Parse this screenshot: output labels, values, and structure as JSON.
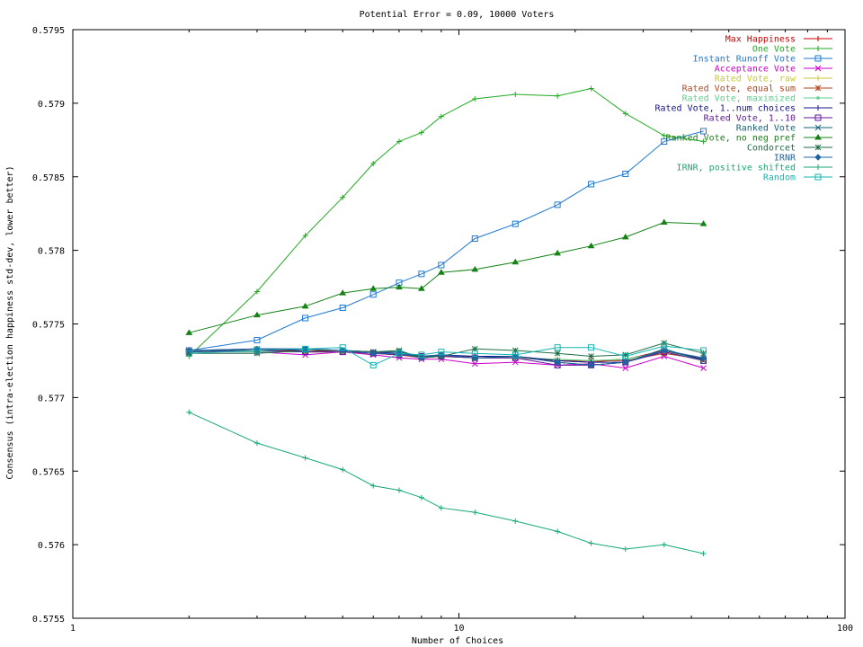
{
  "chart_data": {
    "type": "line",
    "title": "Potential Error = 0.09, 10000 Voters",
    "xlabel": "Number of Choices",
    "ylabel": "Consensus (intra-election happiness std-dev, lower better)",
    "x_scale": "log",
    "xlim": [
      1,
      100
    ],
    "ylim": [
      0.5755,
      0.5795
    ],
    "x_ticks": [
      "1",
      "10",
      "100"
    ],
    "y_ticks": [
      "0.5755",
      "0.576",
      "0.5765",
      "0.577",
      "0.5775",
      "0.578",
      "0.5785",
      "0.579",
      "0.5795"
    ],
    "legend_position": "top-right",
    "grid": false,
    "x": [
      2,
      3,
      4,
      5,
      6,
      7,
      8,
      9,
      11,
      14,
      18,
      22,
      27,
      34,
      43
    ],
    "series": [
      {
        "name": "Max Happiness",
        "color": "#cc0000",
        "marker": "plus-line",
        "values": [
          0.57731,
          0.57732,
          0.57732,
          0.57731,
          0.5773,
          0.5773,
          0.57728,
          0.57728,
          0.57728,
          0.57728,
          0.57725,
          0.57724,
          0.57726,
          0.57732,
          0.57726
        ]
      },
      {
        "name": "One Vote",
        "color": "#22aa22",
        "marker": "plus",
        "values": [
          0.57728,
          0.57772,
          0.5781,
          0.57836,
          0.57859,
          0.57874,
          0.5788,
          0.57891,
          0.57903,
          0.57906,
          0.57905,
          0.5791,
          0.57893,
          0.57878,
          0.57874
        ]
      },
      {
        "name": "Instant Runoff Vote",
        "color": "#1e78d2",
        "marker": "square",
        "values": [
          0.57732,
          0.57739,
          0.57754,
          0.57761,
          0.5777,
          0.57778,
          0.57784,
          0.5779,
          0.57808,
          0.57818,
          0.57831,
          0.57845,
          0.57852,
          0.57874,
          0.57881
        ]
      },
      {
        "name": "Acceptance Vote",
        "color": "#cc00cc",
        "marker": "x",
        "values": [
          0.57731,
          0.57731,
          0.57729,
          0.57731,
          0.57729,
          0.57727,
          0.57726,
          0.57726,
          0.57723,
          0.57724,
          0.57722,
          0.57723,
          0.5772,
          0.57728,
          0.5772
        ]
      },
      {
        "name": "Rated Vote, raw",
        "color": "#c8c832",
        "marker": "plus",
        "values": [
          0.57731,
          0.57732,
          0.57731,
          0.57731,
          0.5773,
          0.57729,
          0.57728,
          0.57728,
          0.57727,
          0.57727,
          0.57726,
          0.57725,
          0.57726,
          0.57731,
          0.57727
        ]
      },
      {
        "name": "Rated Vote, equal sum",
        "color": "#b4461e",
        "marker": "star",
        "values": [
          0.57731,
          0.57732,
          0.57731,
          0.57731,
          0.5773,
          0.57729,
          0.57727,
          0.57728,
          0.57727,
          0.57727,
          0.57725,
          0.57725,
          0.57725,
          0.5773,
          0.57726
        ]
      },
      {
        "name": "Rated Vote, maximized",
        "color": "#5ad28c",
        "marker": "dot",
        "values": [
          0.57731,
          0.57731,
          0.57731,
          0.57731,
          0.5773,
          0.57729,
          0.57728,
          0.57728,
          0.57727,
          0.57727,
          0.57726,
          0.57725,
          0.57726,
          0.57731,
          0.57726
        ]
      },
      {
        "name": "Rated Vote, 1..num choices",
        "color": "#14148c",
        "marker": "plus",
        "values": [
          0.57732,
          0.57733,
          0.57732,
          0.57732,
          0.57731,
          0.5773,
          0.57728,
          0.57729,
          0.57728,
          0.57728,
          0.57725,
          0.57724,
          0.57724,
          0.57732,
          0.57726
        ]
      },
      {
        "name": "Rated Vote, 1..10",
        "color": "#6414a0",
        "marker": "square",
        "values": [
          0.57731,
          0.57732,
          0.57731,
          0.57731,
          0.5773,
          0.57729,
          0.57728,
          0.57728,
          0.57727,
          0.57727,
          0.57722,
          0.57722,
          0.57724,
          0.57731,
          0.57725
        ]
      },
      {
        "name": "Ranked Vote",
        "color": "#14647a",
        "marker": "x",
        "values": [
          0.57731,
          0.57733,
          0.57733,
          0.57732,
          0.57731,
          0.57731,
          0.57728,
          0.57729,
          0.57727,
          0.57728,
          0.57724,
          0.57722,
          0.57724,
          0.57733,
          0.57725
        ]
      },
      {
        "name": "Ranked Vote, no neg pref",
        "color": "#148214",
        "marker": "triangle",
        "values": [
          0.57744,
          0.57756,
          0.57762,
          0.57771,
          0.57774,
          0.57775,
          0.57774,
          0.57785,
          0.57787,
          0.57792,
          0.57798,
          0.57803,
          0.57809,
          0.57819,
          0.57818
        ]
      },
      {
        "name": "Condorcet",
        "color": "#1e6e46",
        "marker": "star",
        "values": [
          0.5773,
          0.5773,
          0.57732,
          0.57732,
          0.57731,
          0.57732,
          0.57727,
          0.57728,
          0.57733,
          0.57732,
          0.5773,
          0.57728,
          0.57729,
          0.57737,
          0.5773
        ]
      },
      {
        "name": "IRNR",
        "color": "#1e64a0",
        "marker": "diamond",
        "values": [
          0.57732,
          0.57733,
          0.57733,
          0.57732,
          0.5773,
          0.5773,
          0.57727,
          0.57729,
          0.57727,
          0.57728,
          0.57724,
          0.57722,
          0.57724,
          0.57732,
          0.57727
        ]
      },
      {
        "name": "IRNR, positive shifted",
        "color": "#14aa78",
        "marker": "plus",
        "values": [
          0.5769,
          0.57669,
          0.57659,
          0.57651,
          0.5764,
          0.57637,
          0.57632,
          0.57625,
          0.57622,
          0.57616,
          0.57609,
          0.57601,
          0.57597,
          0.576,
          0.57594
        ]
      },
      {
        "name": "Random",
        "color": "#14b4b4",
        "marker": "square",
        "values": [
          0.5773,
          0.57732,
          0.57733,
          0.57734,
          0.57722,
          0.5773,
          0.57729,
          0.57731,
          0.5773,
          0.57729,
          0.57734,
          0.57734,
          0.57728,
          0.57735,
          0.57732
        ]
      }
    ]
  }
}
